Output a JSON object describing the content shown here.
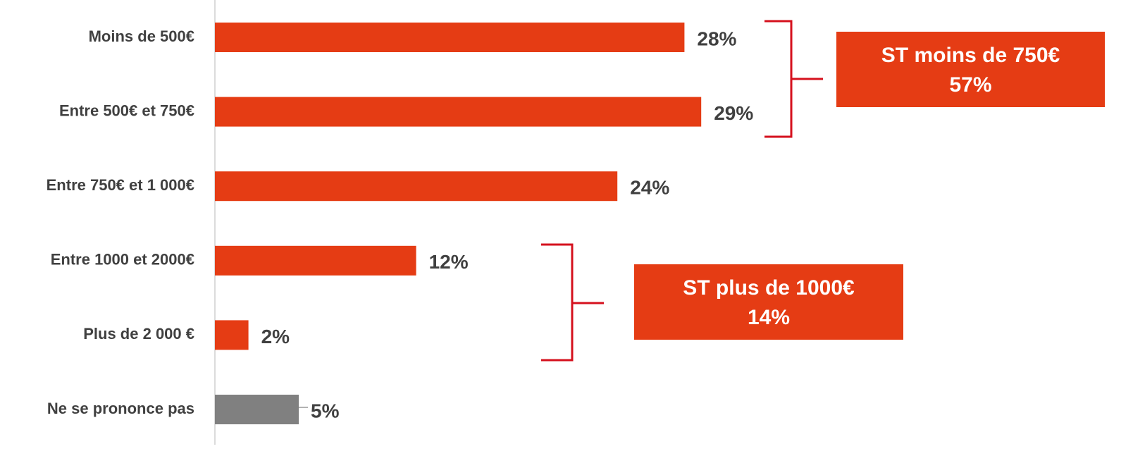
{
  "chart_data": {
    "type": "bar",
    "orientation": "horizontal",
    "categories": [
      "Moins de 500€",
      "Entre 500€ et 750€",
      "Entre 750€ et 1 000€",
      "Entre 1000 et 2000€",
      "Plus de 2 000 €",
      "Ne se prononce pas"
    ],
    "values": [
      28,
      29,
      24,
      12,
      2,
      5
    ],
    "value_labels": [
      "28%",
      "29%",
      "24%",
      "12%",
      "2%",
      "5%"
    ],
    "colors": [
      "#e53c14",
      "#e53c14",
      "#e53c14",
      "#e53c14",
      "#e53c14",
      "#808080"
    ],
    "annotations": [
      {
        "text": "ST moins de 750€",
        "value": 57,
        "value_label": "57%"
      },
      {
        "text": "ST plus de 1000€",
        "value": 14,
        "value_label": "14%"
      }
    ]
  }
}
